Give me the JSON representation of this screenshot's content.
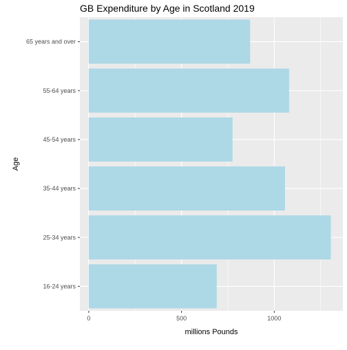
{
  "chart_data": {
    "type": "bar",
    "orientation": "horizontal",
    "title": "GB Expenditure by Age in Scotland 2019",
    "xlabel": "millions Pounds",
    "ylabel": "Age",
    "categories": [
      "16-24 years",
      "25-34 years",
      "35-44 years",
      "45-54 years",
      "55-64 years",
      "65 years and over"
    ],
    "values": [
      690,
      1305,
      1058,
      775,
      1080,
      870
    ],
    "xlim": [
      -48,
      1370
    ],
    "x_ticks": [
      0,
      500,
      1000
    ],
    "x_tick_labels": [
      "0",
      "500",
      "1000"
    ],
    "grid": true,
    "bar_color": "#add8e6",
    "panel_background": "#ebebeb",
    "gridline_color": "#ffffff"
  }
}
